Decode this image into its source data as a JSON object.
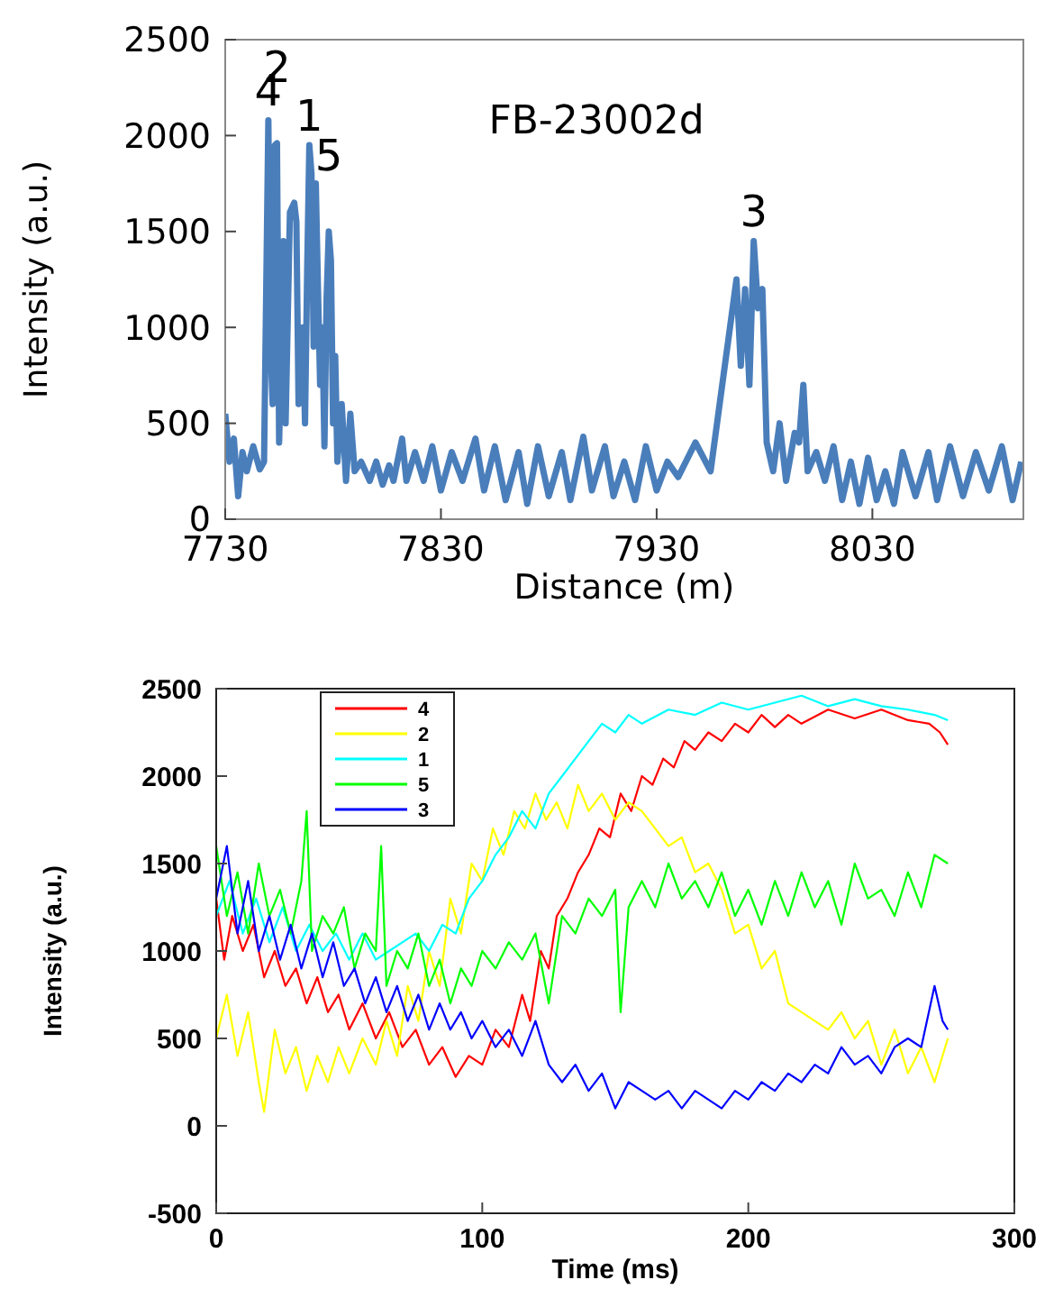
{
  "chart_data": [
    {
      "type": "line",
      "xlabel": "Distance (m)",
      "ylabel": "Intensity (a.u.)",
      "xlim": [
        7730,
        8100
      ],
      "xticks": [
        7730,
        7830,
        7930,
        8030
      ],
      "ylim": [
        0,
        2500
      ],
      "yticks": [
        0,
        500,
        1000,
        1500,
        2000,
        2500
      ],
      "grid": false,
      "legend": false,
      "annotations": [
        {
          "text": "4",
          "x": 7750,
          "y": 2080
        },
        {
          "text": "2",
          "x": 7754,
          "y": 1960
        },
        {
          "text": "1",
          "x": 7769,
          "y": 1950
        },
        {
          "text": "5",
          "x": 7778,
          "y": 1500
        },
        "FB-23002d",
        {
          "text": "3",
          "x": 7975,
          "y": 1450
        }
      ],
      "series": [
        {
          "color": "#4a7ebb",
          "x": [
            7730,
            7732,
            7734,
            7736,
            7738,
            7740,
            7743,
            7746,
            7748,
            7750,
            7751,
            7752,
            7753,
            7754,
            7755,
            7757,
            7758,
            7760,
            7762,
            7763,
            7764,
            7766,
            7767,
            7768,
            7769,
            7770,
            7771,
            7772,
            7773,
            7774,
            7775,
            7776,
            7777,
            7778,
            7779,
            7780,
            7781,
            7782,
            7784,
            7786,
            7788,
            7790,
            7793,
            7797,
            7800,
            7803,
            7806,
            7808,
            7812,
            7814,
            7818,
            7822,
            7826,
            7830,
            7835,
            7840,
            7846,
            7850,
            7855,
            7860,
            7866,
            7870,
            7875,
            7880,
            7886,
            7890,
            7896,
            7900,
            7906,
            7910,
            7915,
            7920,
            7925,
            7930,
            7935,
            7940,
            7948,
            7955,
            7967,
            7969,
            7971,
            7973,
            7975,
            7977,
            7979,
            7981,
            7984,
            7987,
            7990,
            7994,
            7996,
            7998,
            8000,
            8004,
            8008,
            8012,
            8016,
            8020,
            8024,
            8028,
            8032,
            8036,
            8040,
            8044,
            8050,
            8056,
            8060,
            8066,
            8072,
            8078,
            8084,
            8090,
            8095,
            8099
          ],
          "values": [
            550,
            300,
            420,
            120,
            350,
            250,
            380,
            260,
            300,
            2080,
            900,
            600,
            1950,
            1960,
            400,
            1450,
            500,
            1600,
            1650,
            1550,
            600,
            1000,
            500,
            1300,
            1950,
            1800,
            900,
            1750,
            1200,
            700,
            1000,
            380,
            1150,
            1500,
            1350,
            500,
            850,
            300,
            600,
            200,
            550,
            250,
            300,
            200,
            300,
            180,
            280,
            200,
            420,
            200,
            350,
            200,
            380,
            150,
            350,
            200,
            420,
            150,
            380,
            100,
            350,
            80,
            380,
            120,
            350,
            100,
            430,
            150,
            380,
            120,
            300,
            100,
            380,
            150,
            300,
            220,
            400,
            250,
            1250,
            800,
            1200,
            700,
            1450,
            1100,
            1200,
            400,
            250,
            500,
            200,
            450,
            400,
            700,
            250,
            350,
            200,
            380,
            100,
            300,
            80,
            320,
            100,
            250,
            80,
            350,
            120,
            350,
            100,
            380,
            120,
            350,
            150,
            380,
            100,
            300
          ]
        }
      ]
    },
    {
      "type": "line",
      "xlabel": "Time (ms)",
      "ylabel": "Intensity (a.u.)",
      "xlim": [
        0,
        300
      ],
      "xticks": [
        0,
        100,
        200,
        300
      ],
      "ylim": [
        -500,
        2500
      ],
      "yticks": [
        -500,
        0,
        500,
        1000,
        1500,
        2000,
        2500
      ],
      "grid": false,
      "legend": "top left",
      "series": [
        {
          "name": "4",
          "color": "#ff0000",
          "x": [
            0,
            3,
            6,
            10,
            14,
            18,
            22,
            26,
            30,
            34,
            38,
            42,
            46,
            50,
            55,
            60,
            65,
            70,
            75,
            80,
            85,
            90,
            95,
            100,
            105,
            110,
            115,
            118,
            122,
            125,
            128,
            132,
            136,
            140,
            144,
            148,
            152,
            156,
            160,
            164,
            168,
            172,
            176,
            180,
            185,
            190,
            195,
            200,
            205,
            210,
            215,
            220,
            230,
            240,
            250,
            260,
            268,
            272,
            275
          ],
          "values": [
            1300,
            950,
            1200,
            1000,
            1150,
            850,
            1000,
            800,
            900,
            700,
            850,
            650,
            750,
            550,
            700,
            500,
            650,
            450,
            550,
            350,
            450,
            280,
            400,
            350,
            550,
            450,
            750,
            600,
            1000,
            900,
            1200,
            1300,
            1450,
            1550,
            1700,
            1650,
            1900,
            1800,
            2000,
            1950,
            2100,
            2050,
            2200,
            2150,
            2250,
            2200,
            2300,
            2250,
            2350,
            2280,
            2350,
            2300,
            2380,
            2330,
            2380,
            2320,
            2300,
            2250,
            2180
          ]
        },
        {
          "name": "2",
          "color": "#ffff00",
          "x": [
            0,
            4,
            8,
            12,
            16,
            18,
            22,
            26,
            30,
            34,
            38,
            42,
            46,
            50,
            55,
            60,
            64,
            68,
            72,
            76,
            80,
            84,
            88,
            92,
            96,
            100,
            104,
            108,
            112,
            116,
            120,
            124,
            128,
            132,
            136,
            140,
            145,
            150,
            155,
            160,
            165,
            170,
            175,
            180,
            185,
            190,
            195,
            200,
            205,
            210,
            215,
            220,
            225,
            230,
            235,
            240,
            245,
            250,
            255,
            260,
            265,
            270,
            275
          ],
          "values": [
            500,
            750,
            400,
            650,
            250,
            80,
            550,
            300,
            450,
            200,
            400,
            250,
            450,
            300,
            500,
            350,
            600,
            400,
            800,
            600,
            1000,
            800,
            1300,
            1100,
            1500,
            1400,
            1700,
            1550,
            1800,
            1700,
            1900,
            1750,
            1850,
            1700,
            1950,
            1800,
            1900,
            1750,
            1850,
            1800,
            1700,
            1600,
            1650,
            1450,
            1500,
            1350,
            1100,
            1150,
            900,
            1000,
            700,
            650,
            600,
            550,
            650,
            500,
            600,
            350,
            550,
            300,
            450,
            250,
            500
          ]
        },
        {
          "name": "1",
          "color": "#00ffff",
          "x": [
            0,
            5,
            10,
            15,
            20,
            25,
            30,
            35,
            40,
            45,
            50,
            55,
            60,
            65,
            70,
            75,
            80,
            85,
            90,
            95,
            100,
            105,
            110,
            115,
            120,
            125,
            130,
            135,
            140,
            145,
            150,
            155,
            160,
            170,
            180,
            190,
            200,
            210,
            220,
            230,
            240,
            250,
            260,
            270,
            275
          ],
          "values": [
            1200,
            1400,
            1100,
            1300,
            1050,
            1250,
            1000,
            1150,
            1000,
            1100,
            950,
            1100,
            950,
            1000,
            1050,
            1100,
            1000,
            1150,
            1100,
            1300,
            1400,
            1550,
            1650,
            1800,
            1700,
            1900,
            2000,
            2100,
            2200,
            2300,
            2250,
            2350,
            2300,
            2380,
            2350,
            2420,
            2380,
            2420,
            2460,
            2400,
            2440,
            2400,
            2380,
            2350,
            2320
          ]
        },
        {
          "name": "5",
          "color": "#00ff00",
          "x": [
            0,
            4,
            8,
            12,
            16,
            20,
            24,
            28,
            32,
            34,
            36,
            40,
            44,
            48,
            52,
            56,
            60,
            62,
            64,
            68,
            72,
            76,
            80,
            84,
            88,
            92,
            96,
            100,
            105,
            110,
            115,
            120,
            125,
            130,
            135,
            140,
            145,
            150,
            152,
            155,
            160,
            165,
            170,
            175,
            180,
            185,
            190,
            195,
            200,
            205,
            210,
            215,
            220,
            225,
            230,
            235,
            240,
            245,
            250,
            255,
            260,
            265,
            270,
            275
          ],
          "values": [
            1600,
            1200,
            1450,
            1100,
            1500,
            1200,
            1350,
            1100,
            1400,
            1800,
            1000,
            1200,
            1100,
            1250,
            900,
            1100,
            1000,
            1600,
            800,
            1000,
            900,
            1100,
            800,
            950,
            700,
            900,
            800,
            1000,
            900,
            1050,
            950,
            1100,
            700,
            1200,
            1100,
            1300,
            1200,
            1350,
            650,
            1250,
            1400,
            1250,
            1500,
            1300,
            1400,
            1250,
            1450,
            1200,
            1350,
            1150,
            1400,
            1200,
            1450,
            1250,
            1400,
            1150,
            1500,
            1300,
            1350,
            1200,
            1450,
            1250,
            1550,
            1500
          ]
        },
        {
          "name": "3",
          "color": "#0000ff",
          "x": [
            0,
            4,
            8,
            12,
            16,
            20,
            24,
            28,
            32,
            36,
            40,
            44,
            48,
            52,
            56,
            60,
            64,
            68,
            72,
            76,
            80,
            84,
            88,
            92,
            96,
            100,
            105,
            110,
            115,
            120,
            125,
            130,
            135,
            140,
            145,
            150,
            155,
            160,
            165,
            170,
            175,
            180,
            185,
            190,
            195,
            200,
            205,
            210,
            215,
            220,
            225,
            230,
            235,
            240,
            245,
            250,
            255,
            260,
            265,
            270,
            273,
            275
          ],
          "values": [
            1300,
            1600,
            1100,
            1400,
            1000,
            1200,
            950,
            1150,
            900,
            1100,
            850,
            1050,
            800,
            900,
            700,
            850,
            650,
            800,
            600,
            750,
            550,
            700,
            550,
            650,
            500,
            600,
            450,
            550,
            400,
            600,
            350,
            250,
            350,
            200,
            300,
            100,
            250,
            200,
            150,
            200,
            100,
            200,
            150,
            100,
            200,
            150,
            250,
            200,
            300,
            250,
            350,
            300,
            450,
            350,
            400,
            300,
            450,
            500,
            450,
            800,
            600,
            550
          ]
        }
      ]
    }
  ]
}
